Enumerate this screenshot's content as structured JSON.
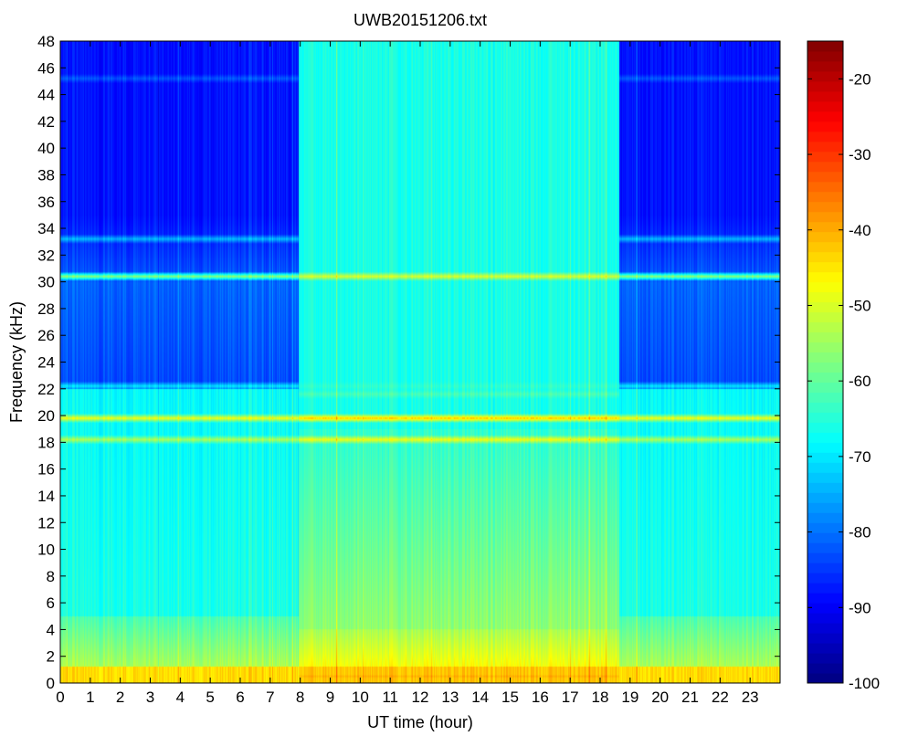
{
  "chart_data": {
    "type": "heatmap",
    "title": "UWB20151206.txt",
    "xlabel": "UT time (hour)",
    "ylabel": "Frequency (kHz)",
    "xlim": [
      0,
      24
    ],
    "ylim": [
      0,
      48
    ],
    "x_ticks": [
      "0",
      "1",
      "2",
      "3",
      "4",
      "5",
      "6",
      "7",
      "8",
      "9",
      "10",
      "11",
      "12",
      "13",
      "14",
      "15",
      "16",
      "17",
      "18",
      "19",
      "20",
      "21",
      "22",
      "23"
    ],
    "y_ticks": [
      "0",
      "2",
      "4",
      "6",
      "8",
      "10",
      "12",
      "14",
      "16",
      "18",
      "20",
      "22",
      "24",
      "26",
      "28",
      "30",
      "32",
      "34",
      "36",
      "38",
      "40",
      "42",
      "44",
      "46",
      "48"
    ],
    "colorbar": {
      "colormap": "jet",
      "range": [
        -100,
        -15
      ],
      "ticks": [
        "-20",
        "-30",
        "-40",
        "-50",
        "-60",
        "-70",
        "-80",
        "-90",
        "-100"
      ],
      "tick_values": [
        -20,
        -30,
        -40,
        -50,
        -60,
        -70,
        -80,
        -90,
        -100
      ]
    },
    "time_regimes": [
      {
        "start_hour": 0,
        "end_hour": 7.95,
        "upper_band_level_db": -88
      },
      {
        "start_hour": 7.95,
        "end_hour": 18.65,
        "upper_band_level_db": -66
      },
      {
        "start_hour": 18.65,
        "end_hour": 24,
        "upper_band_level_db": -88
      }
    ],
    "frequency_bands": [
      {
        "freq_khz": 0.5,
        "level_db": -40,
        "note": "strong low-frequency band"
      },
      {
        "freq_khz": 18.2,
        "level_db": -48
      },
      {
        "freq_khz": 19.8,
        "level_db": -42
      },
      {
        "freq_khz": 21.6,
        "level_db": -62
      },
      {
        "freq_khz": 22.2,
        "level_db": -64
      },
      {
        "freq_khz": 30.4,
        "level_db": -50
      },
      {
        "freq_khz": 33.2,
        "level_db": -68
      },
      {
        "freq_khz": 45.2,
        "level_db": -76
      }
    ]
  }
}
